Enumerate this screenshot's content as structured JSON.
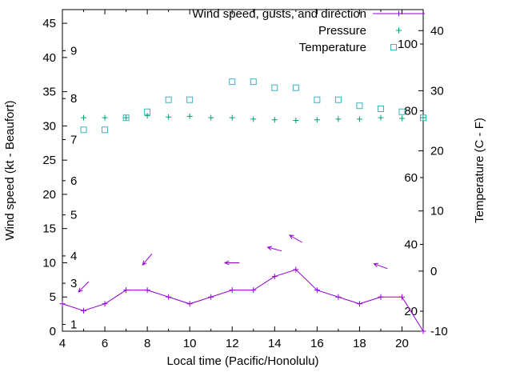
{
  "colors": {
    "wind": "#9400d3",
    "pressure": "#009e73",
    "temperature": "#3ab0c0",
    "axis": "#000000",
    "background": "#ffffff"
  },
  "legend": {
    "items": [
      {
        "label": "Wind speed, gusts, and direction",
        "series": "wind",
        "marker": "line-plus"
      },
      {
        "label": "Pressure",
        "series": "pressure",
        "marker": "plus"
      },
      {
        "label": "Temperature",
        "series": "temperature",
        "marker": "square"
      }
    ]
  },
  "axes": {
    "x": {
      "label": "Local time (Pacific/Honolulu)",
      "min": 4,
      "max": 21,
      "major_ticks": [
        4,
        6,
        8,
        10,
        12,
        14,
        16,
        18,
        20
      ],
      "minor_ticks": [
        5,
        7,
        9,
        11,
        13,
        15,
        17,
        19,
        21
      ]
    },
    "y_left": {
      "label": "Wind speed (kt - Beaufort)",
      "min": 0,
      "max": 47,
      "ticks": [
        0,
        5,
        10,
        15,
        20,
        25,
        30,
        35,
        40,
        45
      ],
      "beaufort_labels": [
        {
          "label": "1",
          "kt": 1
        },
        {
          "label": "3",
          "kt": 7
        },
        {
          "label": "4",
          "kt": 11
        },
        {
          "label": "5",
          "kt": 17
        },
        {
          "label": "6",
          "kt": 22
        },
        {
          "label": "7",
          "kt": 28
        },
        {
          "label": "8",
          "kt": 34
        },
        {
          "label": "9",
          "kt": 41
        }
      ]
    },
    "y_right": {
      "label": "Temperature (C - F)",
      "min": -10,
      "max": 43.5,
      "ticks_celsius": [
        -10,
        0,
        10,
        20,
        30,
        40
      ],
      "fahrenheit_labels": [
        20,
        40,
        60,
        80,
        100
      ]
    }
  },
  "chart_data": {
    "type": "line",
    "x_hours": [
      4,
      5,
      6,
      7,
      8,
      9,
      10,
      11,
      12,
      13,
      14,
      15,
      16,
      17,
      18,
      19,
      20,
      21
    ],
    "series": [
      {
        "name": "Wind speed (kt)",
        "axis": "left",
        "style": "line-plus",
        "x": [
          4,
          5,
          6,
          7,
          8,
          9,
          10,
          11,
          12,
          13,
          14,
          15,
          16,
          17,
          18,
          19,
          20,
          21
        ],
        "y": [
          4,
          3,
          4,
          6,
          6,
          5,
          4,
          5,
          6,
          6,
          8,
          9,
          6,
          5,
          4,
          5,
          5,
          0
        ]
      },
      {
        "name": "Pressure",
        "axis": "left",
        "style": "plus",
        "x": [
          5,
          6,
          7,
          8,
          9,
          10,
          11,
          12,
          13,
          14,
          15,
          16,
          17,
          18,
          19,
          20,
          21
        ],
        "y": [
          31.2,
          31.2,
          31.2,
          31.5,
          31.3,
          31.4,
          31.2,
          31.2,
          31.0,
          30.9,
          30.8,
          30.9,
          31.0,
          31.0,
          31.2,
          31.1,
          31.2
        ]
      },
      {
        "name": "Temperature (C)",
        "axis": "right",
        "style": "square",
        "x": [
          5,
          6,
          7,
          8,
          9,
          10,
          12,
          13,
          14,
          15,
          16,
          17,
          18,
          19,
          20,
          21
        ],
        "y": [
          23.5,
          23.5,
          25.5,
          26.5,
          28.5,
          28.5,
          31.5,
          31.5,
          30.5,
          30.5,
          28.5,
          28.5,
          27.5,
          27,
          26.5,
          25.5
        ]
      }
    ],
    "wind_direction_arrows": [
      {
        "x": 5,
        "kt": 6.5,
        "angle_deg": 225
      },
      {
        "x": 8,
        "kt": 10.5,
        "angle_deg": 230
      },
      {
        "x": 12,
        "kt": 10,
        "angle_deg": 180
      },
      {
        "x": 14,
        "kt": 12,
        "angle_deg": 165
      },
      {
        "x": 15,
        "kt": 13.5,
        "angle_deg": 150
      },
      {
        "x": 19,
        "kt": 9.5,
        "angle_deg": 160
      }
    ]
  }
}
